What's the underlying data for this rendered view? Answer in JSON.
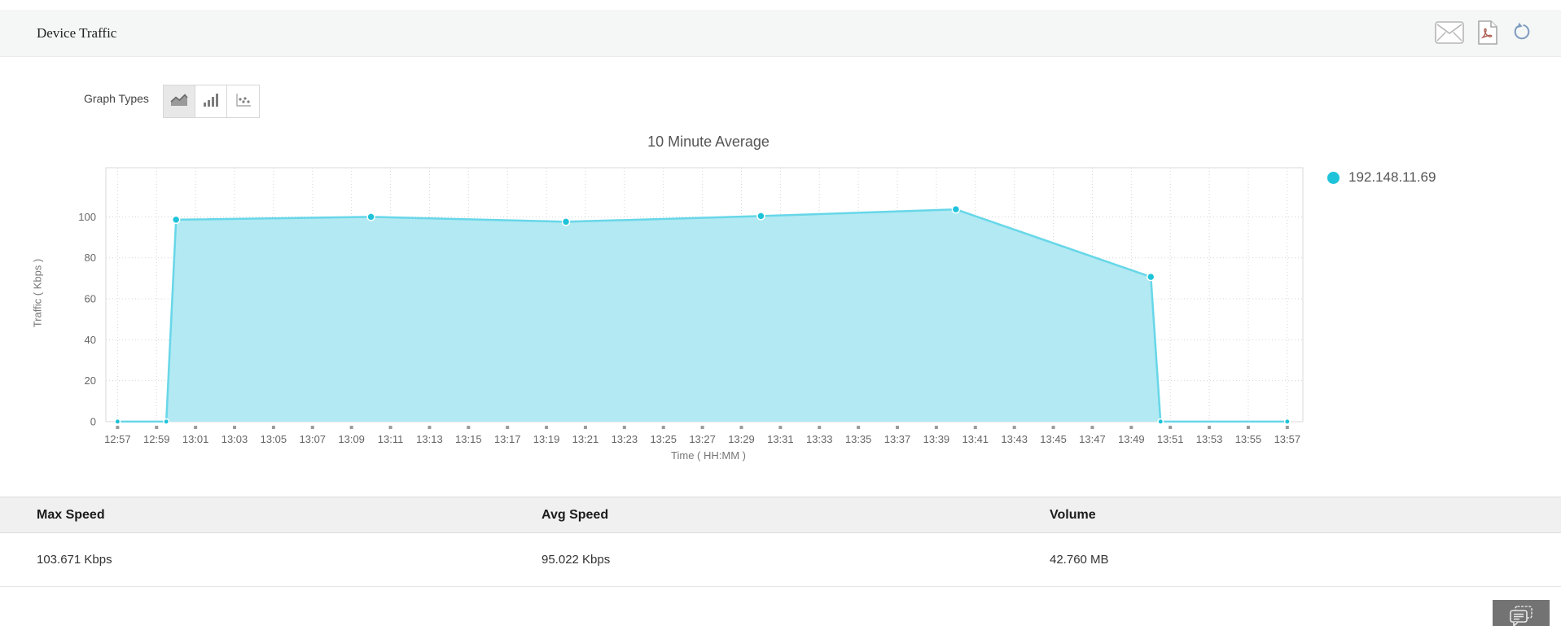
{
  "header": {
    "title": "Device Traffic"
  },
  "graph_types": {
    "label": "Graph Types",
    "options": [
      {
        "name": "area",
        "selected": true
      },
      {
        "name": "bar",
        "selected": false
      },
      {
        "name": "scatter",
        "selected": false
      }
    ]
  },
  "chart_data": {
    "type": "area",
    "title": "10 Minute Average",
    "xlabel": "Time ( HH:MM )",
    "ylabel": "Traffic ( Kbps )",
    "legend_position": "right",
    "grid": true,
    "ylim": [
      0,
      124
    ],
    "y_ticks": [
      0,
      20,
      40,
      60,
      80,
      100
    ],
    "x_range": [
      "12:56:24",
      "13:57:48"
    ],
    "x_ticks": [
      "12:57",
      "12:59",
      "13:01",
      "13:03",
      "13:05",
      "13:07",
      "13:09",
      "13:11",
      "13:13",
      "13:15",
      "13:17",
      "13:19",
      "13:21",
      "13:23",
      "13:25",
      "13:27",
      "13:29",
      "13:31",
      "13:33",
      "13:35",
      "13:37",
      "13:39",
      "13:41",
      "13:43",
      "13:45",
      "13:47",
      "13:49",
      "13:51",
      "13:53",
      "13:55",
      "13:57"
    ],
    "legend": [
      {
        "label": "192.148.11.69",
        "color": "#1ec3da"
      }
    ],
    "series": [
      {
        "name": "192.148.11.69",
        "points": [
          {
            "t": "12:57",
            "v": 0.05,
            "marker": "small"
          },
          {
            "t": "12:59:30",
            "v": 0.05,
            "marker": "small"
          },
          {
            "t": "13:00",
            "v": 98.6,
            "marker": "large"
          },
          {
            "t": "13:10",
            "v": 100.0,
            "marker": "large"
          },
          {
            "t": "13:20",
            "v": 97.6,
            "marker": "large"
          },
          {
            "t": "13:30",
            "v": 100.4,
            "marker": "large"
          },
          {
            "t": "13:40",
            "v": 103.671,
            "marker": "large"
          },
          {
            "t": "13:50",
            "v": 70.7,
            "marker": "large"
          },
          {
            "t": "13:50:30",
            "v": 0.05,
            "marker": "small"
          },
          {
            "t": "13:53",
            "v": 0.05,
            "marker": "none"
          },
          {
            "t": "13:55",
            "v": 0.05,
            "marker": "none"
          },
          {
            "t": "13:57",
            "v": 0.05,
            "marker": "small"
          }
        ]
      }
    ],
    "colors": {
      "fill": "#b2e9f3",
      "line": "#67d7e8",
      "marker": "#1ec3da",
      "grid": "#d4d4d4",
      "border": "#d9d9d9",
      "tick": "#9b9b9b",
      "axis_text": "#666666"
    }
  },
  "summary_table": {
    "columns": [
      "Max Speed",
      "Avg Speed",
      "Volume"
    ],
    "rows": [
      [
        "103.671 Kbps",
        "95.022 Kbps",
        "42.760 MB"
      ]
    ]
  }
}
